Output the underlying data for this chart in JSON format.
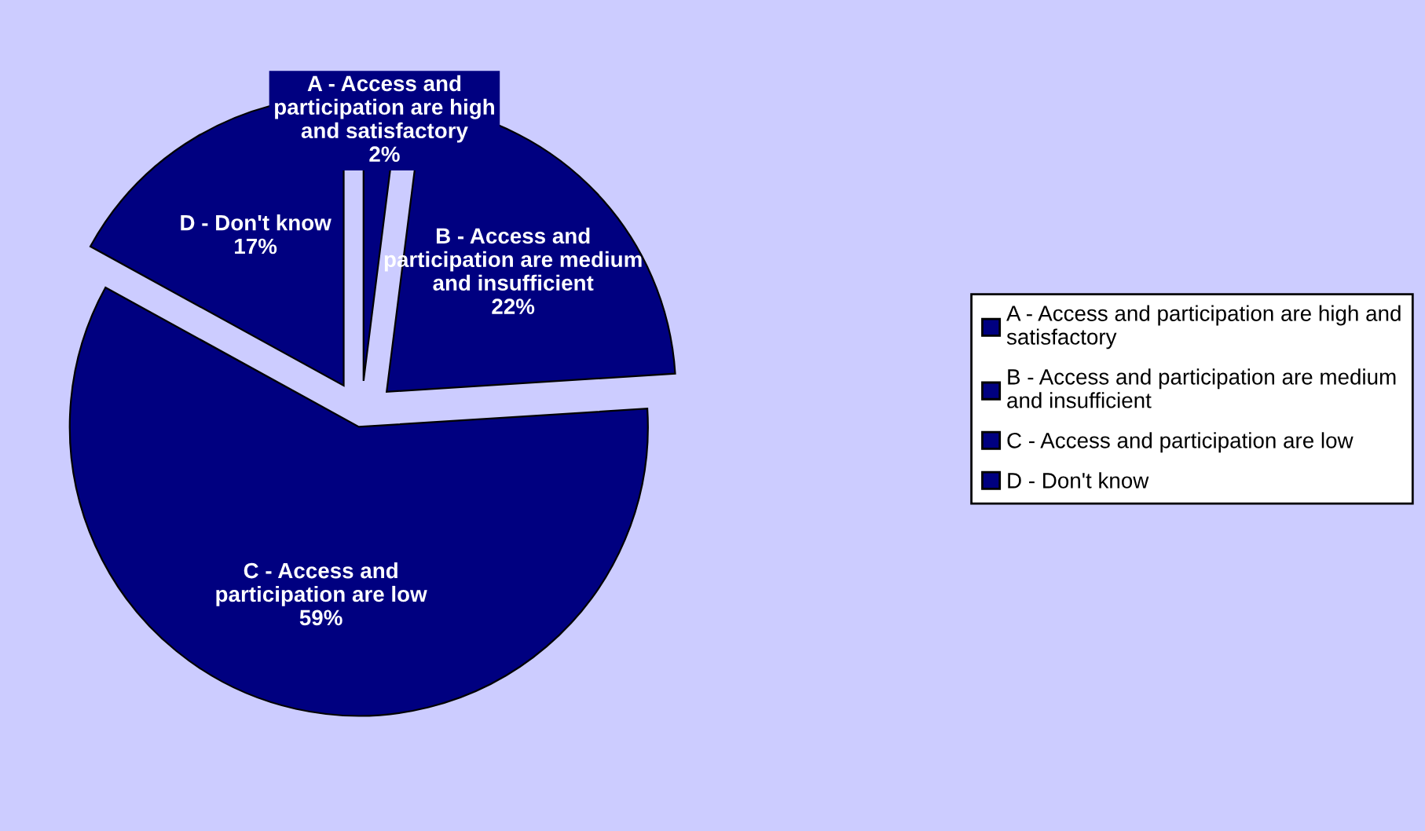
{
  "chart_data": {
    "type": "pie",
    "categories": [
      "A - Access and participation are high and satisfactory",
      "B - Access and participation are medium and insufficient",
      "C - Access and participation are low",
      "D - Don't know"
    ],
    "values": [
      2,
      22,
      59,
      17
    ],
    "colors": [
      "#000080",
      "#000080",
      "#000080",
      "#000080"
    ],
    "value_labels": [
      "2%",
      "22%",
      "59%",
      "17%"
    ],
    "legend": "right"
  }
}
